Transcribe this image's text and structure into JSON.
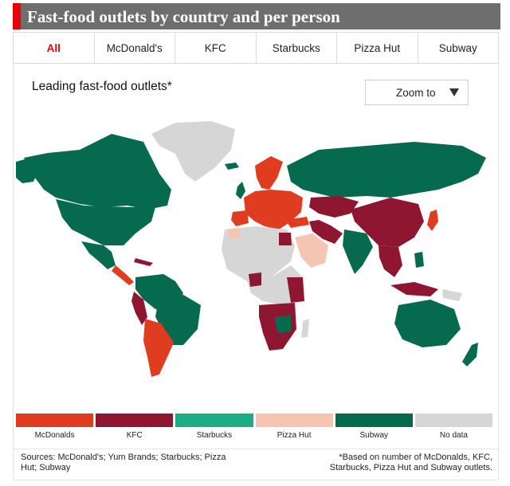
{
  "header": {
    "title": "Fast-food outlets by country and per person"
  },
  "tabs": [
    {
      "label": "All",
      "active": true
    },
    {
      "label": "McDonald's",
      "active": false
    },
    {
      "label": "KFC",
      "active": false
    },
    {
      "label": "Starbucks",
      "active": false
    },
    {
      "label": "Pizza Hut",
      "active": false
    },
    {
      "label": "Subway",
      "active": false
    }
  ],
  "map": {
    "title": "Leading fast-food outlets*"
  },
  "zoom": {
    "label": "Zoom to"
  },
  "legend": [
    {
      "label": "McDonalds",
      "color": "#e03c1f"
    },
    {
      "label": "KFC",
      "color": "#8e1631"
    },
    {
      "label": "Starbucks",
      "color": "#1aae87"
    },
    {
      "label": "Pizza Hut",
      "color": "#f4c6b2"
    },
    {
      "label": "Subway",
      "color": "#066a4e"
    },
    {
      "label": "No data",
      "color": "#d6d6d6"
    }
  ],
  "footer": {
    "sources": "Sources: McDonald's; Yum Brands; Starbucks; Pizza Hut; Subway",
    "note": "*Based on number of McDonalds, KFC, Starbucks, Pizza Hut and Subway outlets."
  }
}
